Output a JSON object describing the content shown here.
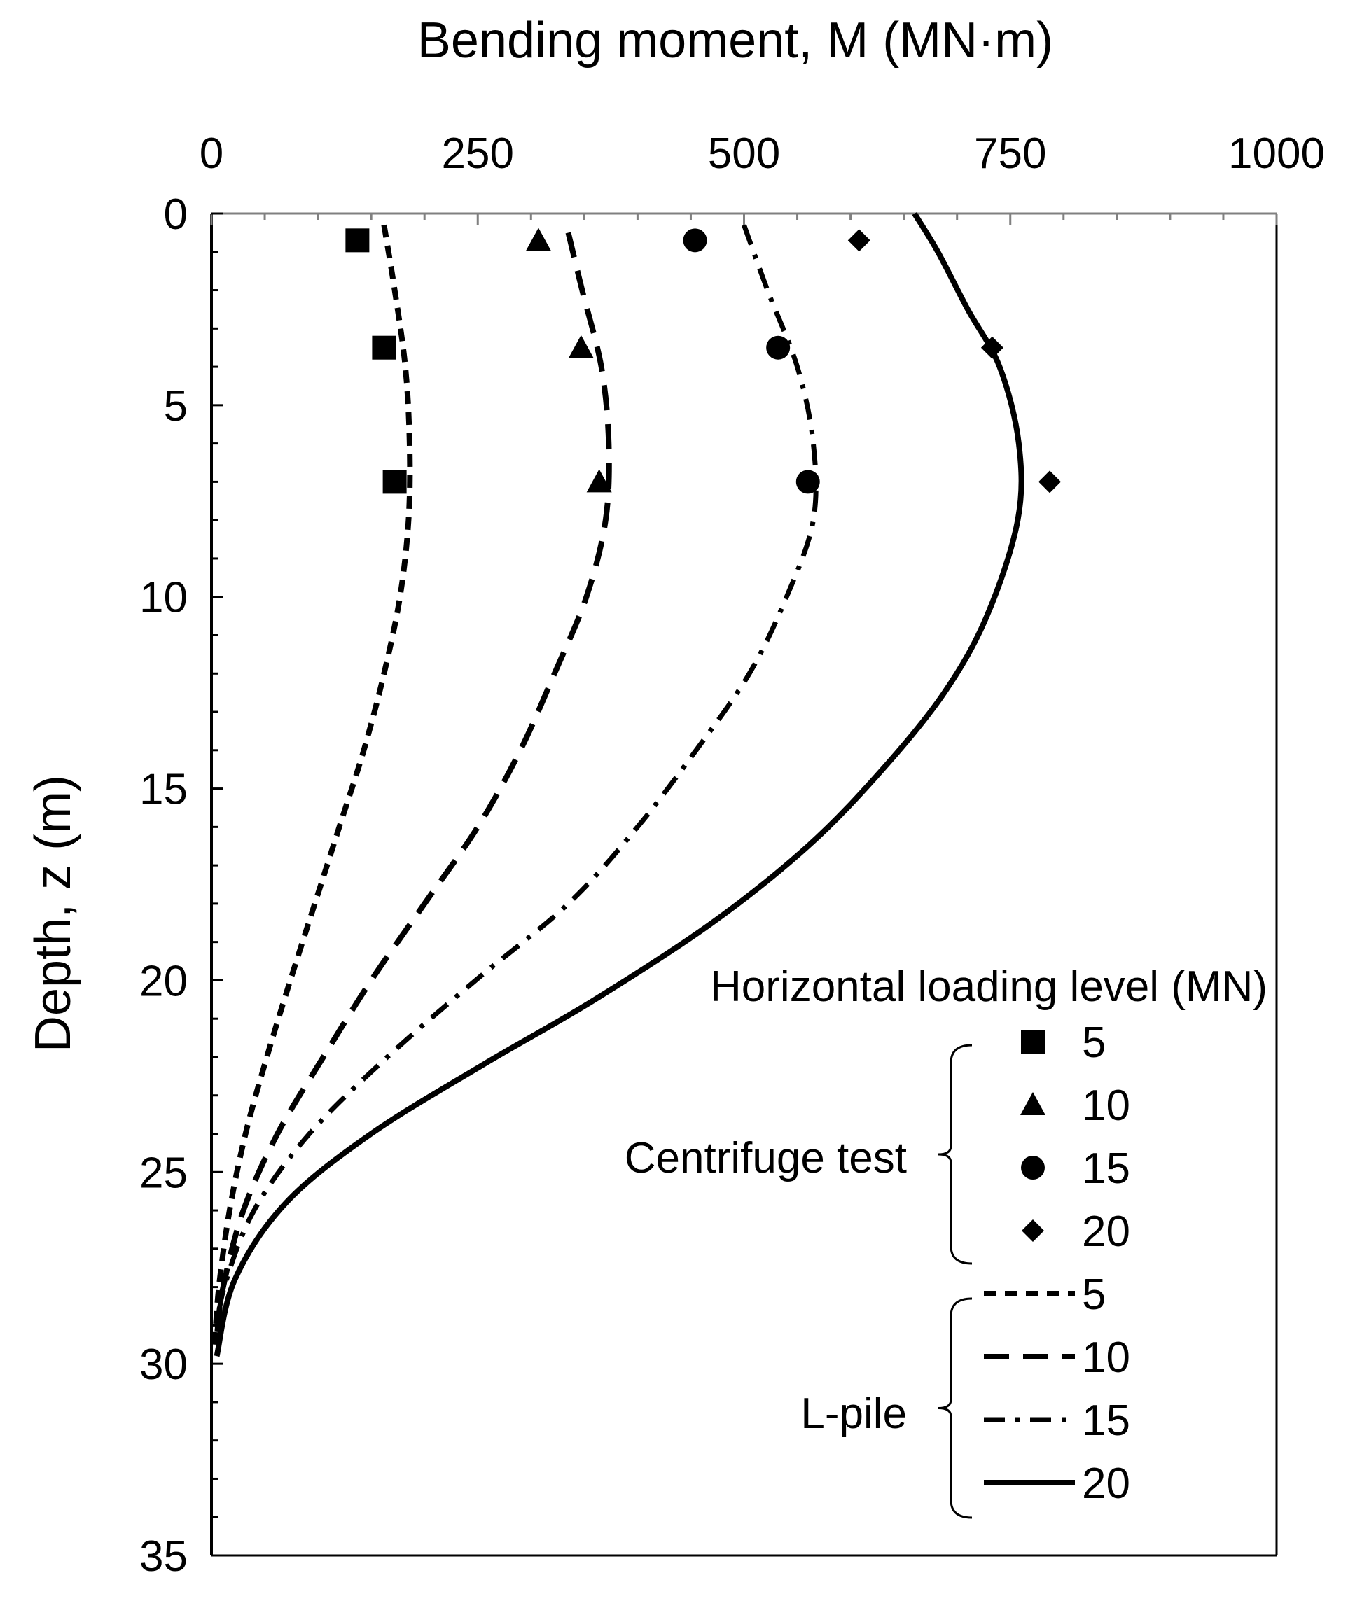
{
  "chart_data": {
    "type": "scatter",
    "xlabel": "Bending moment, M (MN·m)",
    "ylabel": "Depth, z (m)",
    "xlim": [
      0,
      1000
    ],
    "ylim": [
      35,
      0
    ],
    "x_ticks": [
      "0",
      "250",
      "500",
      "750",
      "1000"
    ],
    "y_ticks": [
      "0",
      "5",
      "10",
      "15",
      "20",
      "25",
      "30",
      "35"
    ],
    "x_axis_position": "top",
    "grid": false,
    "legend_title": "Horizontal loading level (MN)",
    "legend_placement": "bottom-right",
    "groups": {
      "markers": "Centrifuge test",
      "lines": "L-pile"
    },
    "series": [
      {
        "name": "5",
        "group": "Centrifuge test",
        "kind": "markers",
        "marker": "square",
        "points": [
          {
            "x": 137,
            "y": 0.7
          },
          {
            "x": 162,
            "y": 3.5
          },
          {
            "x": 172,
            "y": 7.0
          }
        ]
      },
      {
        "name": "10",
        "group": "Centrifuge test",
        "kind": "markers",
        "marker": "triangle",
        "points": [
          {
            "x": 307,
            "y": 0.7
          },
          {
            "x": 347,
            "y": 3.5
          },
          {
            "x": 364,
            "y": 7.0
          }
        ]
      },
      {
        "name": "15",
        "group": "Centrifuge test",
        "kind": "markers",
        "marker": "circle",
        "points": [
          {
            "x": 454,
            "y": 0.7
          },
          {
            "x": 532,
            "y": 3.5
          },
          {
            "x": 560,
            "y": 7.0
          }
        ]
      },
      {
        "name": "20",
        "group": "Centrifuge test",
        "kind": "markers",
        "marker": "diamond",
        "points": [
          {
            "x": 608,
            "y": 0.7
          },
          {
            "x": 733,
            "y": 3.5
          },
          {
            "x": 787,
            "y": 7.0
          }
        ]
      },
      {
        "name": "5",
        "group": "L-pile",
        "kind": "line",
        "dash": "short-dash",
        "points": [
          {
            "x": 162,
            "y": 0.3
          },
          {
            "x": 172,
            "y": 2
          },
          {
            "x": 182,
            "y": 4
          },
          {
            "x": 186,
            "y": 6
          },
          {
            "x": 185,
            "y": 8
          },
          {
            "x": 177,
            "y": 10
          },
          {
            "x": 162,
            "y": 12
          },
          {
            "x": 143,
            "y": 14
          },
          {
            "x": 120,
            "y": 16
          },
          {
            "x": 97,
            "y": 18
          },
          {
            "x": 74,
            "y": 20
          },
          {
            "x": 52,
            "y": 22
          },
          {
            "x": 32,
            "y": 24
          },
          {
            "x": 17,
            "y": 26
          },
          {
            "x": 7,
            "y": 28
          },
          {
            "x": 3,
            "y": 29.5
          }
        ]
      },
      {
        "name": "10",
        "group": "L-pile",
        "kind": "line",
        "dash": "long-dash",
        "points": [
          {
            "x": 335,
            "y": 0.5
          },
          {
            "x": 348,
            "y": 2
          },
          {
            "x": 366,
            "y": 4
          },
          {
            "x": 373,
            "y": 6
          },
          {
            "x": 370,
            "y": 8
          },
          {
            "x": 352,
            "y": 10
          },
          {
            "x": 322,
            "y": 12
          },
          {
            "x": 290,
            "y": 14
          },
          {
            "x": 250,
            "y": 16
          },
          {
            "x": 200,
            "y": 18
          },
          {
            "x": 150,
            "y": 20
          },
          {
            "x": 105,
            "y": 22
          },
          {
            "x": 62,
            "y": 24
          },
          {
            "x": 30,
            "y": 26
          },
          {
            "x": 11,
            "y": 28
          },
          {
            "x": 5,
            "y": 29.3
          }
        ]
      },
      {
        "name": "15",
        "group": "L-pile",
        "kind": "line",
        "dash": "dash-dot",
        "points": [
          {
            "x": 500,
            "y": 0.3
          },
          {
            "x": 522,
            "y": 2
          },
          {
            "x": 550,
            "y": 4
          },
          {
            "x": 565,
            "y": 6
          },
          {
            "x": 565,
            "y": 8
          },
          {
            "x": 540,
            "y": 10
          },
          {
            "x": 505,
            "y": 12
          },
          {
            "x": 455,
            "y": 14
          },
          {
            "x": 400,
            "y": 16
          },
          {
            "x": 335,
            "y": 18
          },
          {
            "x": 248,
            "y": 20
          },
          {
            "x": 165,
            "y": 22
          },
          {
            "x": 92,
            "y": 24
          },
          {
            "x": 40,
            "y": 26
          },
          {
            "x": 12,
            "y": 28
          },
          {
            "x": 5,
            "y": 29.2
          }
        ]
      },
      {
        "name": "20",
        "group": "L-pile",
        "kind": "line",
        "dash": "solid",
        "points": [
          {
            "x": 660,
            "y": 0
          },
          {
            "x": 682,
            "y": 1
          },
          {
            "x": 710,
            "y": 2.5
          },
          {
            "x": 740,
            "y": 4
          },
          {
            "x": 758,
            "y": 6
          },
          {
            "x": 757,
            "y": 8
          },
          {
            "x": 728,
            "y": 10.5
          },
          {
            "x": 688,
            "y": 12.5
          },
          {
            "x": 630,
            "y": 14.5
          },
          {
            "x": 560,
            "y": 16.5
          },
          {
            "x": 470,
            "y": 18.5
          },
          {
            "x": 360,
            "y": 20.5
          },
          {
            "x": 255,
            "y": 22.2
          },
          {
            "x": 150,
            "y": 24
          },
          {
            "x": 70,
            "y": 25.8
          },
          {
            "x": 22,
            "y": 27.8
          },
          {
            "x": 5,
            "y": 29.8
          }
        ]
      }
    ]
  }
}
